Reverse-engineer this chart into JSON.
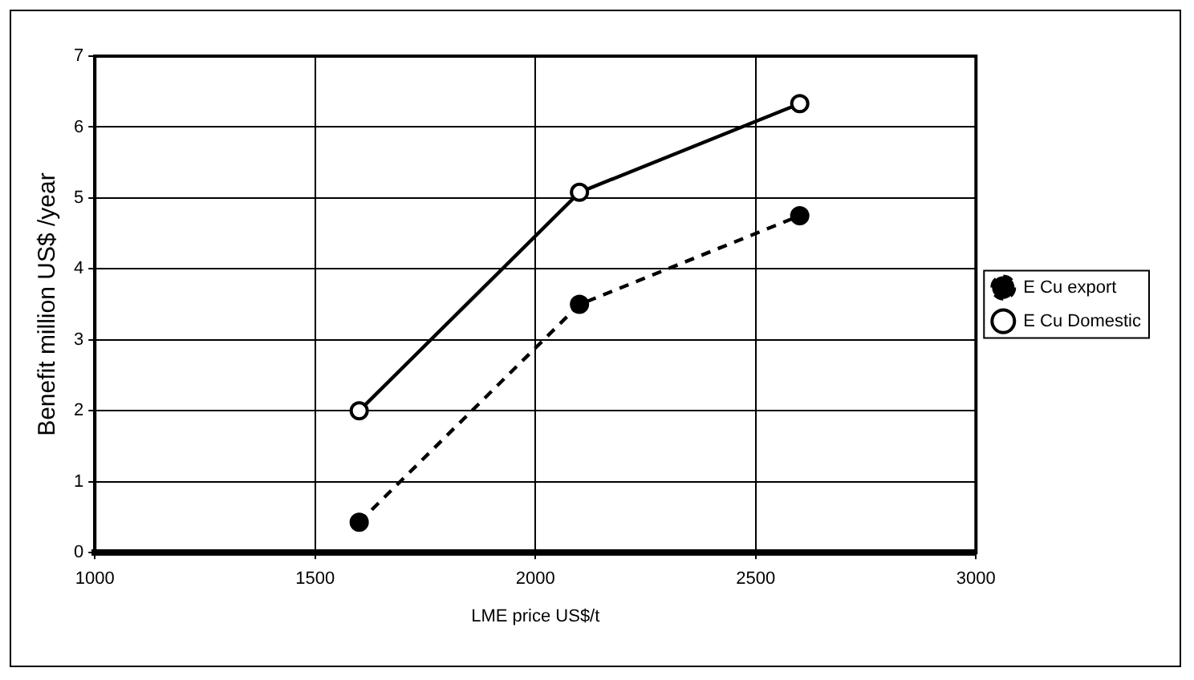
{
  "chart_data": {
    "type": "line",
    "xlabel": "LME price US$/t",
    "ylabel": "Benefit million US$ /year",
    "series": [
      {
        "name": "E Cu export",
        "color": "#000000",
        "x": [
          1600,
          2100,
          2600
        ],
        "values": [
          0.43,
          3.5,
          4.75
        ],
        "line_style": "dashed",
        "marker": "circle"
      },
      {
        "name": "E Cu Domestic",
        "color": "#000000",
        "x": [
          1600,
          2100,
          2600
        ],
        "values": [
          2.0,
          5.08,
          6.33
        ],
        "line_style": "solid",
        "marker": "circle"
      }
    ],
    "xlim": [
      1000,
      3000
    ],
    "xticks": [
      1000,
      1500,
      2000,
      2500,
      3000
    ],
    "ylim": [
      0,
      7
    ],
    "yticks": [
      0,
      1,
      2,
      3,
      4,
      5,
      6,
      7
    ],
    "grid": true,
    "legend": "right"
  }
}
